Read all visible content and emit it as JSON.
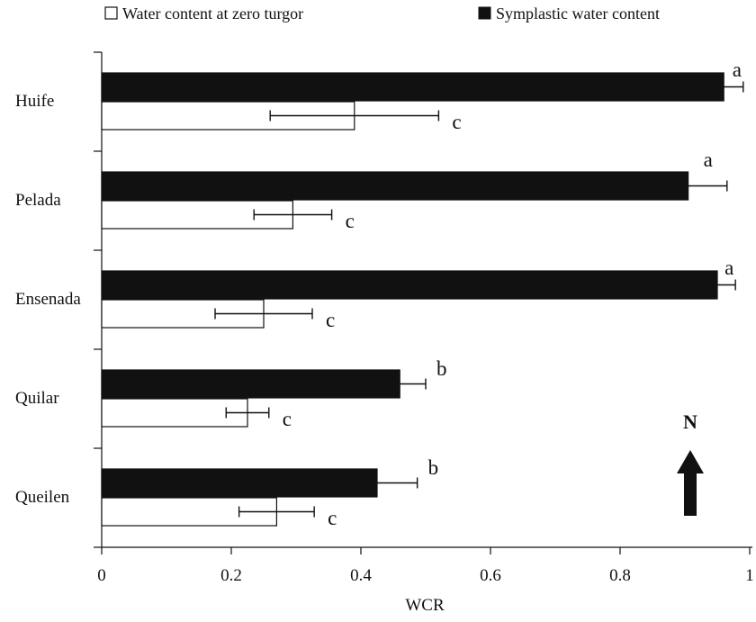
{
  "chart_data": {
    "type": "bar",
    "orientation": "horizontal",
    "categories": [
      "Huife",
      "Pelada",
      "Ensenada",
      "Quilar",
      "Queilen"
    ],
    "series": [
      {
        "name": "Symplastic water content",
        "color": "#111111",
        "values": [
          0.96,
          0.905,
          0.95,
          0.46,
          0.425
        ],
        "errors": [
          0.03,
          0.06,
          0.028,
          0.04,
          0.062
        ],
        "labels": [
          "a",
          "a",
          "a",
          "b",
          "b"
        ]
      },
      {
        "name": "Water content at zero turgor",
        "color": "#ffffff",
        "values": [
          0.39,
          0.295,
          0.25,
          0.225,
          0.27
        ],
        "errors": [
          0.13,
          0.06,
          0.075,
          0.033,
          0.058
        ],
        "labels": [
          "c",
          "c",
          "c",
          "c",
          "c"
        ]
      }
    ],
    "xlabel": "WCR",
    "ylabel": "",
    "xlim": [
      0,
      1
    ],
    "xticks": [
      "0",
      "0.2",
      "0.4",
      "0.6",
      "0.8",
      "1"
    ],
    "grid": false,
    "legend_position": "top"
  },
  "compass": {
    "label": "N",
    "icon": "north-arrow-icon"
  }
}
